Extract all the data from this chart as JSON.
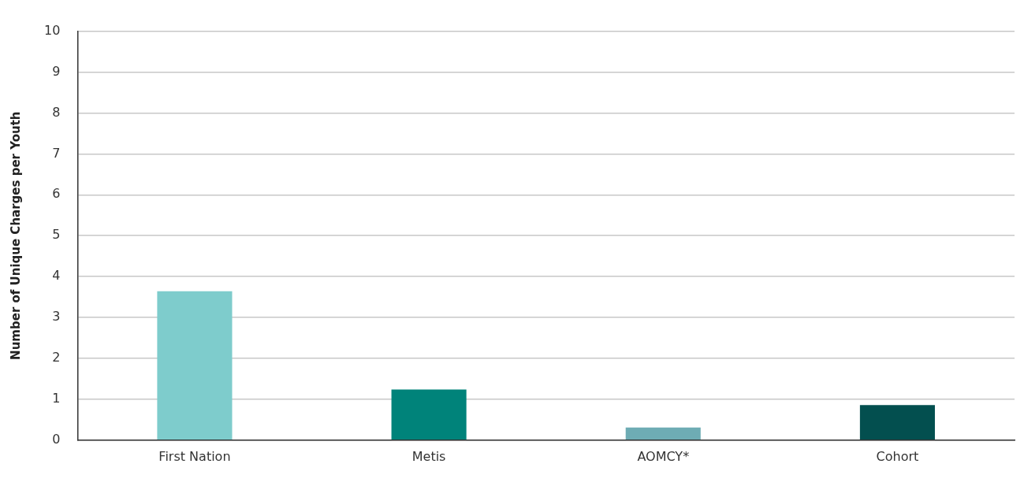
{
  "chart_data": {
    "type": "bar",
    "ylabel": "Number of Unique Charges per Youth",
    "categories": [
      "First Nation",
      "Metis",
      "AOMCY*",
      "Cohort"
    ],
    "values": [
      3.64,
      1.24,
      0.31,
      0.86
    ],
    "colors": [
      "#7ecccc",
      "#00837a",
      "#6eacb4",
      "#034f4f"
    ],
    "ylim": [
      0,
      10
    ],
    "yticks": [
      0,
      1,
      2,
      3,
      4,
      5,
      6,
      7,
      8,
      9,
      10
    ],
    "grid": "y",
    "legend": false
  }
}
